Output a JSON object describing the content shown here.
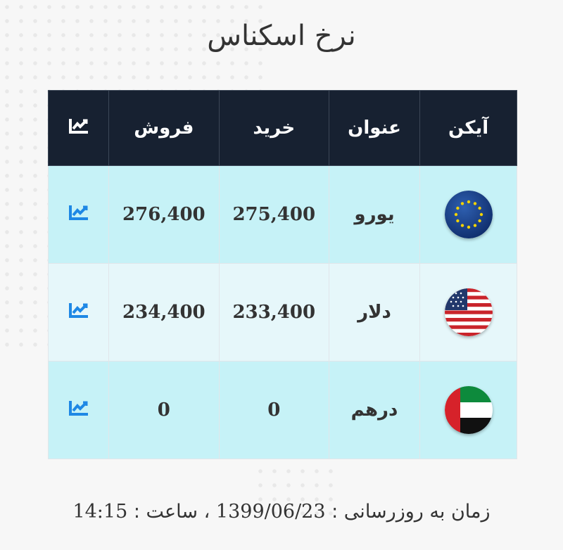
{
  "page_title": "نرخ اسکناس",
  "table": {
    "headers": {
      "icon": "آیکن",
      "title": "عنوان",
      "buy": "خرید",
      "sell": "فروش",
      "chart_icon": "chart-line-icon"
    },
    "rows": [
      {
        "flag": "eu-flag-icon",
        "title": "یورو",
        "buy": "275,400",
        "sell": "276,400",
        "chart_icon": "chart-line-icon"
      },
      {
        "flag": "us-flag-icon",
        "title": "دلار",
        "buy": "233,400",
        "sell": "234,400",
        "chart_icon": "chart-line-icon"
      },
      {
        "flag": "uae-flag-icon",
        "title": "درهم",
        "buy": "0",
        "sell": "0",
        "chart_icon": "chart-line-icon"
      }
    ]
  },
  "footer": {
    "label": "زمان به روزرسانی :",
    "date": "1399/06/23",
    "separator": "،",
    "time_label": "ساعت :",
    "time": "14:15"
  },
  "colors": {
    "header_bg": "#172131",
    "row_highlight": "#c6f2f7",
    "row_alt": "#e6f7fa",
    "chart_icon": "#1e88e5"
  }
}
